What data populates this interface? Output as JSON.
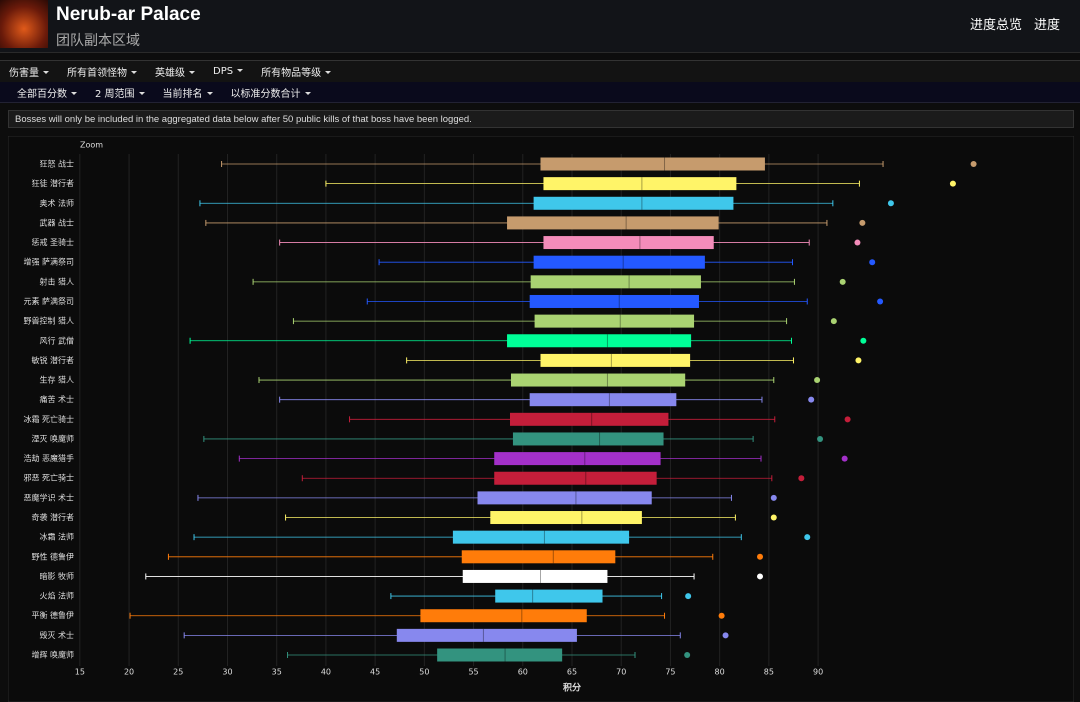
{
  "header": {
    "title": "Nerub-ar Palace",
    "subtitle": "团队副本区域",
    "links": [
      "进度总览",
      "进度"
    ]
  },
  "menus": {
    "row1": [
      "伤害量",
      "所有首领怪物",
      "英雄级",
      "DPS",
      "所有物品等级"
    ],
    "row2": [
      "全部百分数",
      "2 周范围",
      "当前排名",
      "以标准分数合计"
    ]
  },
  "notice": "Bosses will only be included in the aggregated data below after 50 public kills of that boss have been logged.",
  "chart_data": {
    "type": "box",
    "zoom_label": "Zoom",
    "xlabel": "积分",
    "categories": [
      "狂怒 战士",
      "狂徒 潜行者",
      "奥术 法师",
      "武器 战士",
      "惩戒 圣骑士",
      "增强 萨满祭司",
      "射击 猎人",
      "元素 萨满祭司",
      "野兽控制 猎人",
      "风行 武僧",
      "敏锐 潜行者",
      "生存 猎人",
      "痛苦 术士",
      "冰霜 死亡骑士",
      "湮灭 唤魔师",
      "浩劫 恶魔猎手",
      "邪恶 死亡骑士",
      "恶魔学识 术士",
      "奇袭 潜行者",
      "冰霜 法师",
      "野性 德鲁伊",
      "暗影 牧师",
      "火焰 法师",
      "平衡 德鲁伊",
      "毁灭 术士",
      "增辉 唤魔师"
    ],
    "min": [
      29.4,
      40.0,
      27.2,
      27.8,
      35.3,
      45.4,
      32.6,
      44.2,
      36.7,
      26.2,
      48.2,
      33.2,
      35.3,
      42.4,
      27.6,
      31.2,
      37.6,
      27.0,
      35.9,
      26.6,
      24.0,
      21.7,
      46.6,
      20.1,
      25.6,
      36.1
    ],
    "q1": [
      61.8,
      62.1,
      61.1,
      58.4,
      62.1,
      61.1,
      60.8,
      60.7,
      61.2,
      58.4,
      61.8,
      58.8,
      60.7,
      58.7,
      59.0,
      57.1,
      57.1,
      55.4,
      56.7,
      52.9,
      53.8,
      53.9,
      57.2,
      49.6,
      47.2,
      51.3
    ],
    "median": [
      74.4,
      72.1,
      72.1,
      70.5,
      71.9,
      70.2,
      70.8,
      69.8,
      69.9,
      68.6,
      69.0,
      68.6,
      68.8,
      67.0,
      67.8,
      66.3,
      66.4,
      65.4,
      66.0,
      62.2,
      63.1,
      61.8,
      61.0,
      59.9,
      56.0,
      58.2
    ],
    "q3": [
      84.6,
      81.7,
      81.4,
      79.9,
      79.4,
      78.5,
      78.1,
      77.9,
      77.4,
      77.1,
      77.0,
      76.5,
      75.6,
      74.8,
      74.3,
      74.0,
      73.6,
      73.1,
      72.1,
      70.8,
      69.4,
      68.6,
      68.1,
      66.5,
      65.5,
      64.0
    ],
    "max": [
      96.6,
      94.2,
      91.5,
      90.9,
      89.1,
      87.4,
      87.6,
      88.9,
      86.8,
      87.3,
      87.5,
      85.5,
      84.3,
      85.6,
      83.4,
      84.2,
      85.3,
      81.2,
      81.6,
      82.2,
      79.3,
      77.4,
      74.1,
      74.4,
      76.0,
      71.4
    ],
    "outliers": [
      105.8,
      103.7,
      97.4,
      94.5,
      94.0,
      95.5,
      92.5,
      96.3,
      91.6,
      94.6,
      94.1,
      89.9,
      89.3,
      93.0,
      90.2,
      92.7,
      88.3,
      85.5,
      85.5,
      88.9,
      84.1,
      84.1,
      76.8,
      80.2,
      80.6,
      76.7
    ],
    "colors": [
      "#c69b6d",
      "#fff468",
      "#3fc7eb",
      "#c69b6d",
      "#f48cba",
      "#2459ff",
      "#aad372",
      "#2459ff",
      "#aad372",
      "#00ff98",
      "#fff468",
      "#aad372",
      "#8788ee",
      "#c41e3a",
      "#33937f",
      "#a330c9",
      "#c41e3a",
      "#8788ee",
      "#fff468",
      "#3fc7eb",
      "#ff7c0a",
      "#ffffff",
      "#3fc7eb",
      "#ff7c0a",
      "#8788ee",
      "#33937f"
    ],
    "xlim": [
      14,
      116
    ],
    "xticks": [
      15,
      20,
      25,
      30,
      35,
      40,
      45,
      50,
      55,
      60,
      65,
      70,
      75,
      80,
      85,
      90
    ],
    "grid": true
  }
}
